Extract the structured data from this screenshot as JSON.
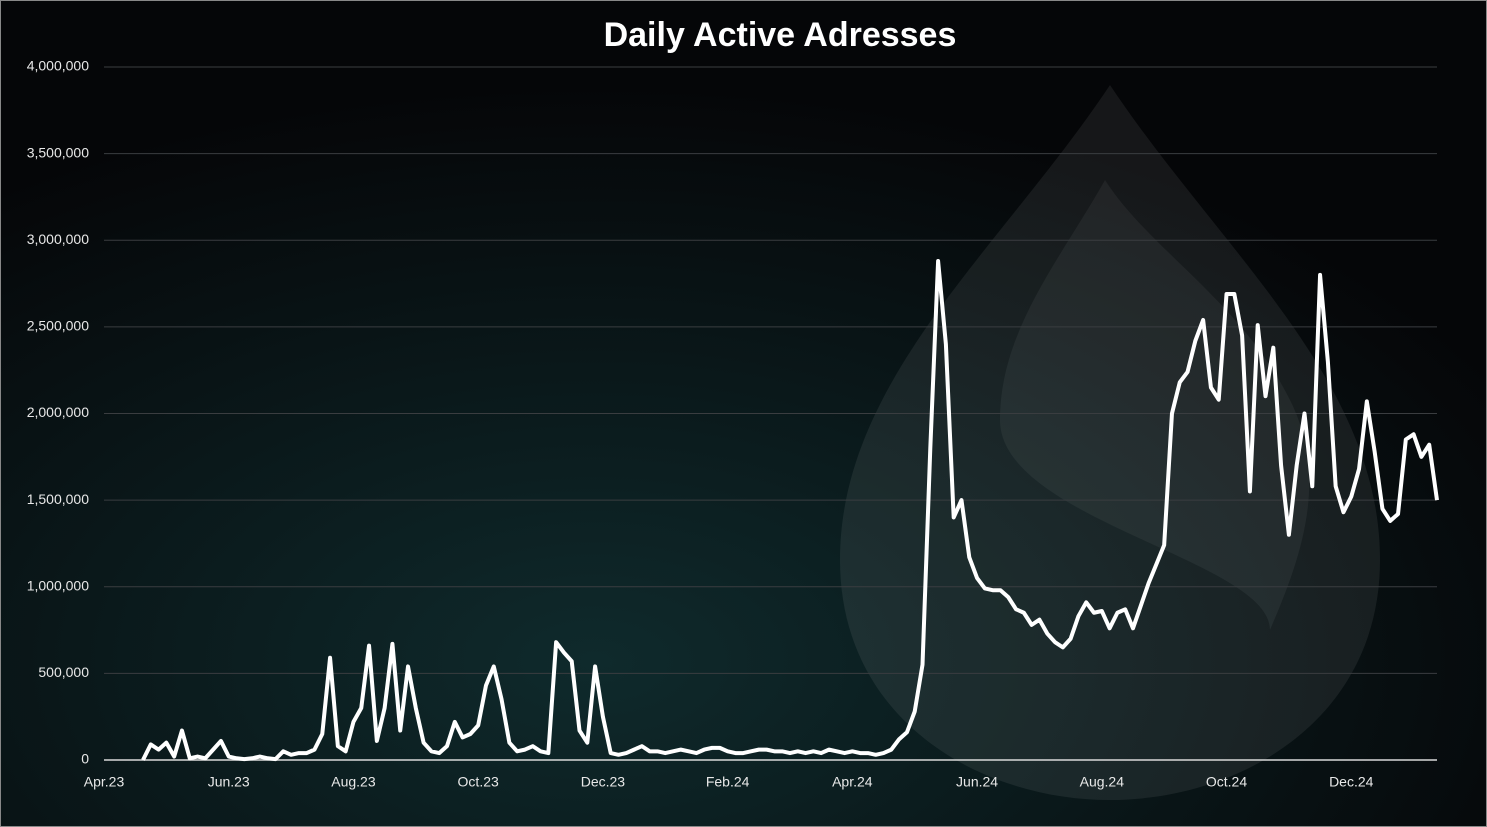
{
  "chart_data": {
    "type": "line",
    "title": "Daily Active Adresses",
    "categories": [
      "Apr.23",
      null,
      null,
      null,
      null,
      null,
      null,
      null,
      null,
      null,
      null,
      null,
      null,
      null,
      null,
      null,
      "Jun.23",
      null,
      null,
      null,
      null,
      null,
      null,
      null,
      null,
      null,
      null,
      null,
      null,
      null,
      null,
      null,
      "Aug.23",
      null,
      null,
      null,
      null,
      null,
      null,
      null,
      null,
      null,
      null,
      null,
      null,
      null,
      null,
      null,
      "Oct.23",
      null,
      null,
      null,
      null,
      null,
      null,
      null,
      null,
      null,
      null,
      null,
      null,
      null,
      null,
      null,
      "Dec.23",
      null,
      null,
      null,
      null,
      null,
      null,
      null,
      null,
      null,
      null,
      null,
      null,
      null,
      null,
      null,
      "Feb.24",
      null,
      null,
      null,
      null,
      null,
      null,
      null,
      null,
      null,
      null,
      null,
      null,
      null,
      null,
      null,
      "Apr.24",
      null,
      null,
      null,
      null,
      null,
      null,
      null,
      null,
      null,
      null,
      null,
      null,
      null,
      null,
      null,
      "Jun.24",
      null,
      null,
      null,
      null,
      null,
      null,
      null,
      null,
      null,
      null,
      null,
      null,
      null,
      null,
      null,
      "Aug.24",
      null,
      null,
      null,
      null,
      null,
      null,
      null,
      null,
      null,
      null,
      null,
      null,
      null,
      null,
      null,
      "Oct.24",
      null,
      null,
      null,
      null,
      null,
      null,
      null,
      null,
      null,
      null,
      null,
      null,
      null,
      null,
      null,
      "Dec.24",
      null,
      null,
      null,
      null,
      null,
      null,
      null,
      null,
      null,
      null,
      null
    ],
    "values": [
      null,
      null,
      null,
      null,
      null,
      0,
      90000,
      60000,
      100000,
      20000,
      170000,
      10000,
      20000,
      10000,
      60000,
      110000,
      20000,
      10000,
      5000,
      10000,
      20000,
      10000,
      5000,
      50000,
      30000,
      40000,
      40000,
      60000,
      150000,
      590000,
      80000,
      50000,
      220000,
      300000,
      660000,
      110000,
      300000,
      670000,
      170000,
      540000,
      300000,
      100000,
      50000,
      40000,
      80000,
      220000,
      130000,
      150000,
      200000,
      430000,
      540000,
      350000,
      100000,
      50000,
      60000,
      80000,
      50000,
      40000,
      680000,
      620000,
      570000,
      170000,
      100000,
      540000,
      250000,
      40000,
      30000,
      40000,
      60000,
      80000,
      50000,
      50000,
      40000,
      50000,
      60000,
      50000,
      40000,
      60000,
      70000,
      70000,
      50000,
      40000,
      40000,
      50000,
      60000,
      60000,
      50000,
      50000,
      40000,
      50000,
      40000,
      50000,
      40000,
      60000,
      50000,
      40000,
      50000,
      40000,
      40000,
      30000,
      40000,
      60000,
      120000,
      160000,
      280000,
      550000,
      1800000,
      2880000,
      2400000,
      1400000,
      1500000,
      1170000,
      1050000,
      990000,
      980000,
      980000,
      940000,
      870000,
      850000,
      780000,
      810000,
      730000,
      680000,
      650000,
      700000,
      830000,
      910000,
      850000,
      860000,
      760000,
      850000,
      870000,
      760000,
      890000,
      1020000,
      1130000,
      1240000,
      2000000,
      2180000,
      2240000,
      2420000,
      2540000,
      2150000,
      2080000,
      2690000,
      2690000,
      2450000,
      1550000,
      2510000,
      2100000,
      2380000,
      1700000,
      1300000,
      1700000,
      2000000,
      1580000,
      2800000,
      2300000,
      1580000,
      1430000,
      1520000,
      1680000,
      2070000,
      1780000,
      1450000,
      1380000,
      1420000,
      1850000,
      1880000,
      1750000,
      1820000,
      1500000
    ],
    "color": "#ffffff",
    "ylim": [
      0,
      4000000
    ],
    "yticks": [
      0,
      {
        "value": 500000,
        "label": "500,000"
      },
      {
        "value": 1000000,
        "label": "1,000,000"
      },
      {
        "value": 1500000,
        "label": "1,500,000"
      },
      {
        "value": 2000000,
        "label": "2,000,000"
      },
      {
        "value": 2500000,
        "label": "2,500,000"
      },
      {
        "value": 3000000,
        "label": "3,000,000"
      },
      {
        "value": 3500000,
        "label": "3,500,000"
      },
      {
        "value": 4000000,
        "label": "4,000,000"
      }
    ],
    "grid": true
  }
}
